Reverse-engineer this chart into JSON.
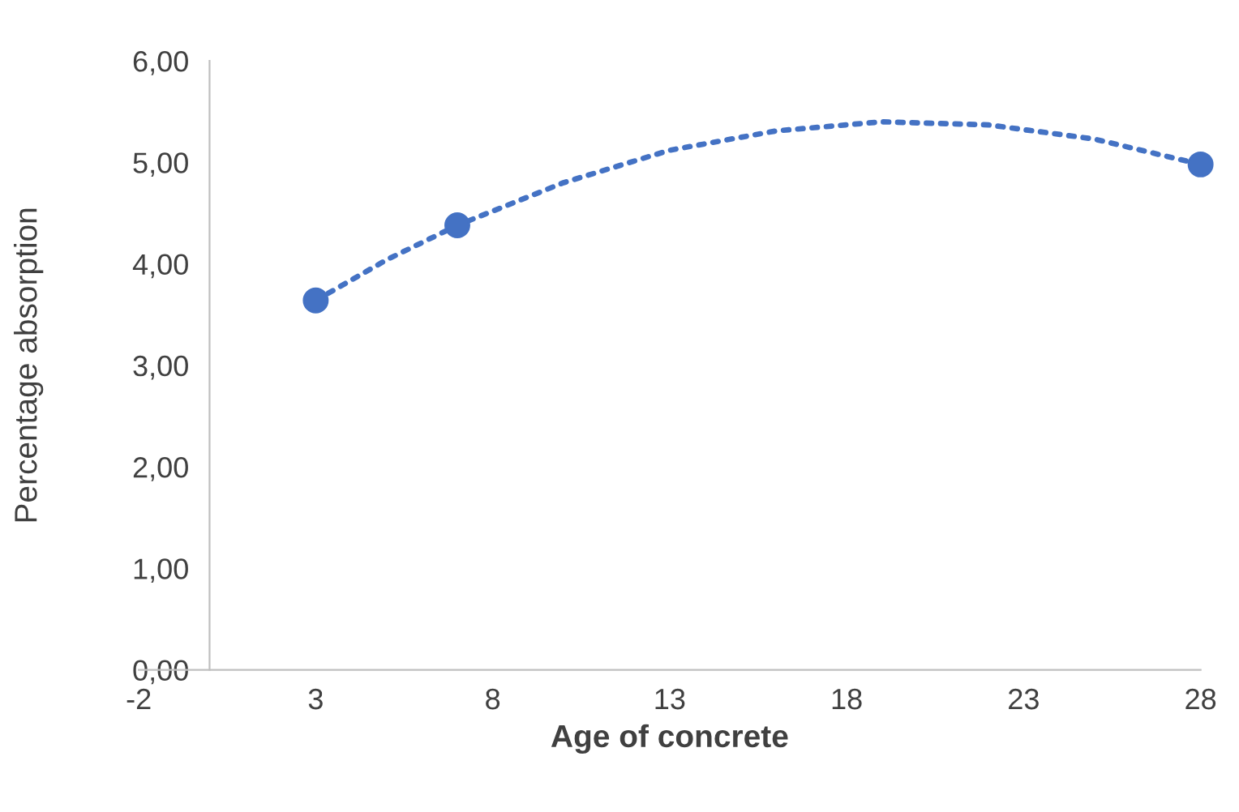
{
  "chart_data": {
    "type": "scatter",
    "xlabel": "Age of concrete",
    "ylabel": "Percentage absorption",
    "xlim": [
      -2,
      28
    ],
    "ylim": [
      0,
      6
    ],
    "xticks": [
      -2,
      3,
      8,
      13,
      18,
      23,
      28
    ],
    "yticks": [
      {
        "value": 0,
        "label": "0,00"
      },
      {
        "value": 1,
        "label": "1,00"
      },
      {
        "value": 2,
        "label": "2,00"
      },
      {
        "value": 3,
        "label": "3,00"
      },
      {
        "value": 4,
        "label": "4,00"
      },
      {
        "value": 5,
        "label": "5,00"
      },
      {
        "value": 6,
        "label": "6,00"
      }
    ],
    "grid": false,
    "legend": false,
    "marker": "circle",
    "series": [
      {
        "color": "#4472c4",
        "x": [
          3,
          7,
          28
        ],
        "values": [
          3.64,
          4.38,
          4.98
        ]
      },
      {
        "type": "line",
        "color": "#4472c4",
        "line_style": "dotted",
        "marker": "none",
        "x": [
          3,
          5,
          7,
          10,
          13,
          16,
          19,
          22,
          25,
          28
        ],
        "values": [
          3.64,
          4.04,
          4.38,
          4.8,
          5.12,
          5.31,
          5.4,
          5.37,
          5.23,
          4.98
        ]
      }
    ]
  }
}
